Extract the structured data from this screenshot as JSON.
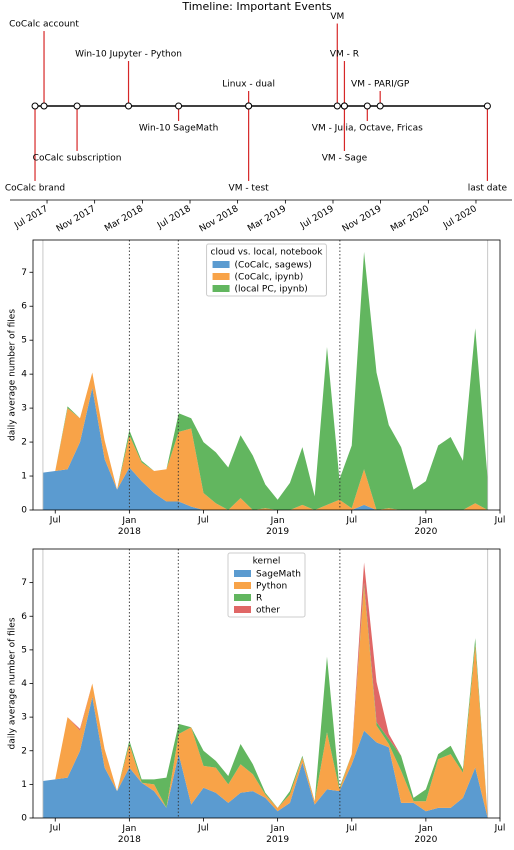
{
  "chart_data": [
    {
      "type": "timeline",
      "title": "Timeline: Important Events",
      "labels": [
        "CoCalc brand",
        "CoCalc account",
        "CoCalc subscription",
        "Win-10 Jupyter - Python",
        "Win-10 SageMath",
        "Linux - dual",
        "VM - test",
        "VM",
        "VM - R",
        "VM - Julia, Octave, Fricas",
        "VM - Sage",
        "VM - PARI/GP",
        "last date"
      ],
      "x": [
        2017.416,
        2017.479,
        2017.71,
        2018.07,
        2018.42,
        2018.91,
        2018.91,
        2019.53,
        2019.58,
        2019.74,
        2019.58,
        2019.83,
        2020.58
      ],
      "levels": [
        -5,
        5,
        -3,
        3,
        -1,
        1,
        -5,
        5.5,
        3,
        -1,
        -3,
        1,
        -5
      ],
      "stem_color": "#d62728",
      "xlim": [
        2017.241,
        2020.752
      ],
      "ylim": [
        -6.27,
        6.07
      ],
      "xticks": [
        {
          "value": 2017.5,
          "label": "Jul 2017"
        },
        {
          "value": 2017.833,
          "label": "Nov 2017"
        },
        {
          "value": 2018.167,
          "label": "Mar 2018"
        },
        {
          "value": 2018.5,
          "label": "Jul 2018"
        },
        {
          "value": 2018.833,
          "label": "Nov 2018"
        },
        {
          "value": 2019.167,
          "label": "Mar 2019"
        },
        {
          "value": 2019.5,
          "label": "Jul 2019"
        },
        {
          "value": 2019.833,
          "label": "Nov 2019"
        },
        {
          "value": 2020.167,
          "label": "Mar 2020"
        },
        {
          "value": 2020.5,
          "label": "Jul 2020"
        }
      ]
    },
    {
      "type": "area",
      "stacked": true,
      "ylabel": "daily average number of files",
      "legend_title": "cloud vs. local, notebook",
      "legend": "upper center",
      "x": [
        2017.417,
        2017.5,
        2017.583,
        2017.667,
        2017.75,
        2017.833,
        2017.917,
        2018.0,
        2018.083,
        2018.167,
        2018.25,
        2018.333,
        2018.417,
        2018.5,
        2018.583,
        2018.667,
        2018.75,
        2018.833,
        2018.917,
        2019.0,
        2019.083,
        2019.167,
        2019.25,
        2019.333,
        2019.417,
        2019.5,
        2019.583,
        2019.667,
        2019.75,
        2019.833,
        2019.917,
        2020.0,
        2020.083,
        2020.167,
        2020.25,
        2020.333,
        2020.417
      ],
      "series": [
        {
          "name": "(CoCalc, sagews)",
          "color": "#5b9bd0",
          "values": [
            1.1,
            1.15,
            1.2,
            2.0,
            3.6,
            1.5,
            0.6,
            1.25,
            0.85,
            0.5,
            0.25,
            0.25,
            0.1,
            0,
            0,
            0,
            0,
            0,
            0,
            0,
            0,
            0,
            0,
            0,
            0,
            0,
            0.15,
            0,
            0,
            0,
            0,
            0,
            0,
            0,
            0,
            0,
            0
          ]
        },
        {
          "name": "(CoCalc, ipynb)",
          "color": "#f8a348",
          "values": [
            0,
            0,
            1.8,
            0.7,
            0.45,
            0.55,
            0,
            0.95,
            0.55,
            0.65,
            0.95,
            2.05,
            2.3,
            0.5,
            0.2,
            0,
            0.35,
            0,
            0.05,
            0,
            0,
            0.15,
            0,
            0.15,
            0.3,
            0.05,
            1.05,
            0,
            0.05,
            0,
            0,
            0,
            0,
            0,
            0,
            0.2,
            0
          ]
        },
        {
          "name": "(local PC, ipynb)",
          "color": "#62b65f",
          "values": [
            0,
            0,
            0.05,
            0,
            0,
            0,
            0,
            0.15,
            0.05,
            0,
            0,
            0.55,
            0.3,
            1.5,
            1.5,
            1.25,
            1.85,
            1.6,
            0.7,
            0.3,
            0.8,
            1.7,
            0.4,
            4.65,
            0.6,
            1.85,
            6.4,
            4.05,
            2.45,
            1.85,
            0.6,
            0.85,
            1.9,
            2.15,
            1.45,
            5.15,
            0.9
          ]
        }
      ],
      "event_lines": [
        2018.0,
        2018.33,
        2019.42
      ],
      "range_lines": [
        2017.417,
        2020.417
      ],
      "xlim": [
        2017.35,
        2020.5
      ],
      "ylim": [
        0,
        7.95
      ],
      "yticks": [
        0,
        1,
        2,
        3,
        4,
        5,
        6,
        7
      ],
      "xticks": [
        {
          "value": 2017.5,
          "label": "Jul"
        },
        {
          "value": 2018.0,
          "label": "Jan\n2018"
        },
        {
          "value": 2018.5,
          "label": "Jul"
        },
        {
          "value": 2019.0,
          "label": "Jan\n2019"
        },
        {
          "value": 2019.5,
          "label": "Jul"
        },
        {
          "value": 2020.0,
          "label": "Jan\n2020"
        },
        {
          "value": 2020.5,
          "label": "Jul"
        }
      ]
    },
    {
      "type": "area",
      "stacked": true,
      "ylabel": "daily average number of files",
      "legend_title": "kernel",
      "legend": "upper center",
      "x": [
        2017.417,
        2017.5,
        2017.583,
        2017.667,
        2017.75,
        2017.833,
        2017.917,
        2018.0,
        2018.083,
        2018.167,
        2018.25,
        2018.333,
        2018.417,
        2018.5,
        2018.583,
        2018.667,
        2018.75,
        2018.833,
        2018.917,
        2019.0,
        2019.083,
        2019.167,
        2019.25,
        2019.333,
        2019.417,
        2019.5,
        2019.583,
        2019.667,
        2019.75,
        2019.833,
        2019.917,
        2020.0,
        2020.083,
        2020.167,
        2020.25,
        2020.333,
        2020.417
      ],
      "series": [
        {
          "name": "SageMath",
          "color": "#5b9bd0",
          "values": [
            1.1,
            1.15,
            1.2,
            2.0,
            3.6,
            1.5,
            0.8,
            1.5,
            1.05,
            0.8,
            0.3,
            1.9,
            0.4,
            0.9,
            0.75,
            0.45,
            0.75,
            0.8,
            0.6,
            0.2,
            0.45,
            1.65,
            0.4,
            0.85,
            0.8,
            1.6,
            2.6,
            2.25,
            2.1,
            0.45,
            0.45,
            0.2,
            0.3,
            0.3,
            0.6,
            1.5,
            0
          ]
        },
        {
          "name": "Python",
          "color": "#f8a348",
          "values": [
            0,
            0,
            1.8,
            0.6,
            0.4,
            0.55,
            0,
            0.7,
            0,
            0.2,
            0,
            0.6,
            2.3,
            0.65,
            0.75,
            0.55,
            0.85,
            0.5,
            0.1,
            0.1,
            0.25,
            0.15,
            0.1,
            1.7,
            0.05,
            0.3,
            4.3,
            0.5,
            0.1,
            0.95,
            0.05,
            0.3,
            1.45,
            1.6,
            0.75,
            3.65,
            0.05
          ]
        },
        {
          "name": "R",
          "color": "#62b65f",
          "values": [
            0,
            0,
            0,
            0,
            0,
            0,
            0,
            0.1,
            0.1,
            0.15,
            0.9,
            0.3,
            0,
            0.45,
            0.2,
            0.25,
            0.6,
            0.3,
            0.05,
            0,
            0.1,
            0.05,
            0,
            2.25,
            0.05,
            0,
            0.1,
            0.1,
            0.15,
            0.45,
            0.1,
            0.35,
            0.15,
            0.25,
            0.1,
            0.2,
            0
          ]
        },
        {
          "name": "other",
          "color": "#e06766",
          "values": [
            0,
            0,
            0,
            0.05,
            0,
            0,
            0,
            0,
            0,
            0,
            0,
            0,
            0,
            0,
            0,
            0,
            0,
            0,
            0,
            0,
            0,
            0,
            0,
            0,
            0,
            0,
            0.6,
            1.2,
            0.15,
            0,
            0,
            0,
            0,
            0,
            0,
            0,
            0
          ]
        }
      ],
      "event_lines": [
        2018.0,
        2018.33,
        2019.42
      ],
      "range_lines": [
        2017.417,
        2020.417
      ],
      "xlim": [
        2017.35,
        2020.5
      ],
      "ylim": [
        0,
        8.0
      ],
      "yticks": [
        0,
        1,
        2,
        3,
        4,
        5,
        6,
        7
      ],
      "xticks": [
        {
          "value": 2017.5,
          "label": "Jul"
        },
        {
          "value": 2018.0,
          "label": "Jan\n2018"
        },
        {
          "value": 2018.5,
          "label": "Jul"
        },
        {
          "value": 2019.0,
          "label": "Jan\n2019"
        },
        {
          "value": 2019.5,
          "label": "Jul"
        },
        {
          "value": 2020.0,
          "label": "Jan\n2020"
        },
        {
          "value": 2020.5,
          "label": "Jul"
        }
      ]
    }
  ]
}
